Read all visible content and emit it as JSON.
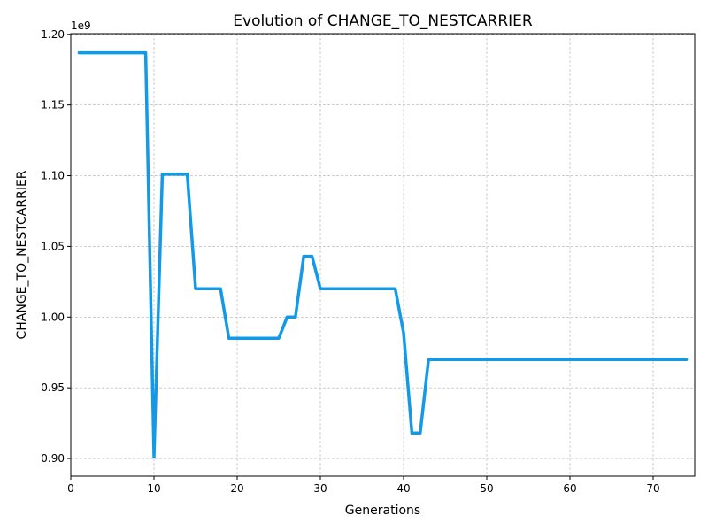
{
  "chart_data": {
    "type": "line",
    "title": "Evolution of CHANGE_TO_NESTCARRIER",
    "xlabel": "Generations",
    "ylabel": "CHANGE_TO_NESTCARRIER",
    "y_offset_label": "1e9",
    "xlim": [
      0,
      75
    ],
    "ylim": [
      0.8875,
      1.2005
    ],
    "x_ticks": [
      0,
      10,
      20,
      30,
      40,
      50,
      60,
      70
    ],
    "y_ticks": [
      0.9,
      0.95,
      1.0,
      1.05,
      1.1,
      1.15,
      1.2
    ],
    "y_tick_labels": [
      "0.90",
      "0.95",
      "1.00",
      "1.05",
      "1.10",
      "1.15",
      "1.20"
    ],
    "grid": true,
    "line_color": "#1499e6",
    "series": [
      {
        "x": [
          1,
          2,
          3,
          4,
          5,
          6,
          7,
          8,
          9,
          10,
          11,
          12,
          13,
          14,
          15,
          16,
          17,
          18,
          19,
          20,
          21,
          22,
          23,
          24,
          25,
          26,
          27,
          28,
          29,
          30,
          31,
          32,
          33,
          34,
          35,
          36,
          37,
          38,
          39,
          40,
          41,
          42,
          43,
          44,
          45,
          46,
          47,
          48,
          49,
          50,
          51,
          52,
          53,
          54,
          55,
          56,
          57,
          58,
          59,
          60,
          61,
          62,
          63,
          64,
          65,
          66,
          67,
          68,
          69,
          70,
          71,
          72,
          73,
          74
        ],
        "values": [
          1.187,
          1.187,
          1.187,
          1.187,
          1.187,
          1.187,
          1.187,
          1.187,
          1.187,
          0.901,
          1.101,
          1.101,
          1.101,
          1.101,
          1.02,
          1.02,
          1.02,
          1.02,
          0.985,
          0.985,
          0.985,
          0.985,
          0.985,
          0.985,
          0.985,
          1.0,
          1.0,
          1.043,
          1.043,
          1.02,
          1.02,
          1.02,
          1.02,
          1.02,
          1.02,
          1.02,
          1.02,
          1.02,
          1.02,
          0.989,
          0.918,
          0.918,
          0.97,
          0.97,
          0.97,
          0.97,
          0.97,
          0.97,
          0.97,
          0.97,
          0.97,
          0.97,
          0.97,
          0.97,
          0.97,
          0.97,
          0.97,
          0.97,
          0.97,
          0.97,
          0.97,
          0.97,
          0.97,
          0.97,
          0.97,
          0.97,
          0.97,
          0.97,
          0.97,
          0.97,
          0.97,
          0.97,
          0.97,
          0.97
        ]
      }
    ]
  }
}
